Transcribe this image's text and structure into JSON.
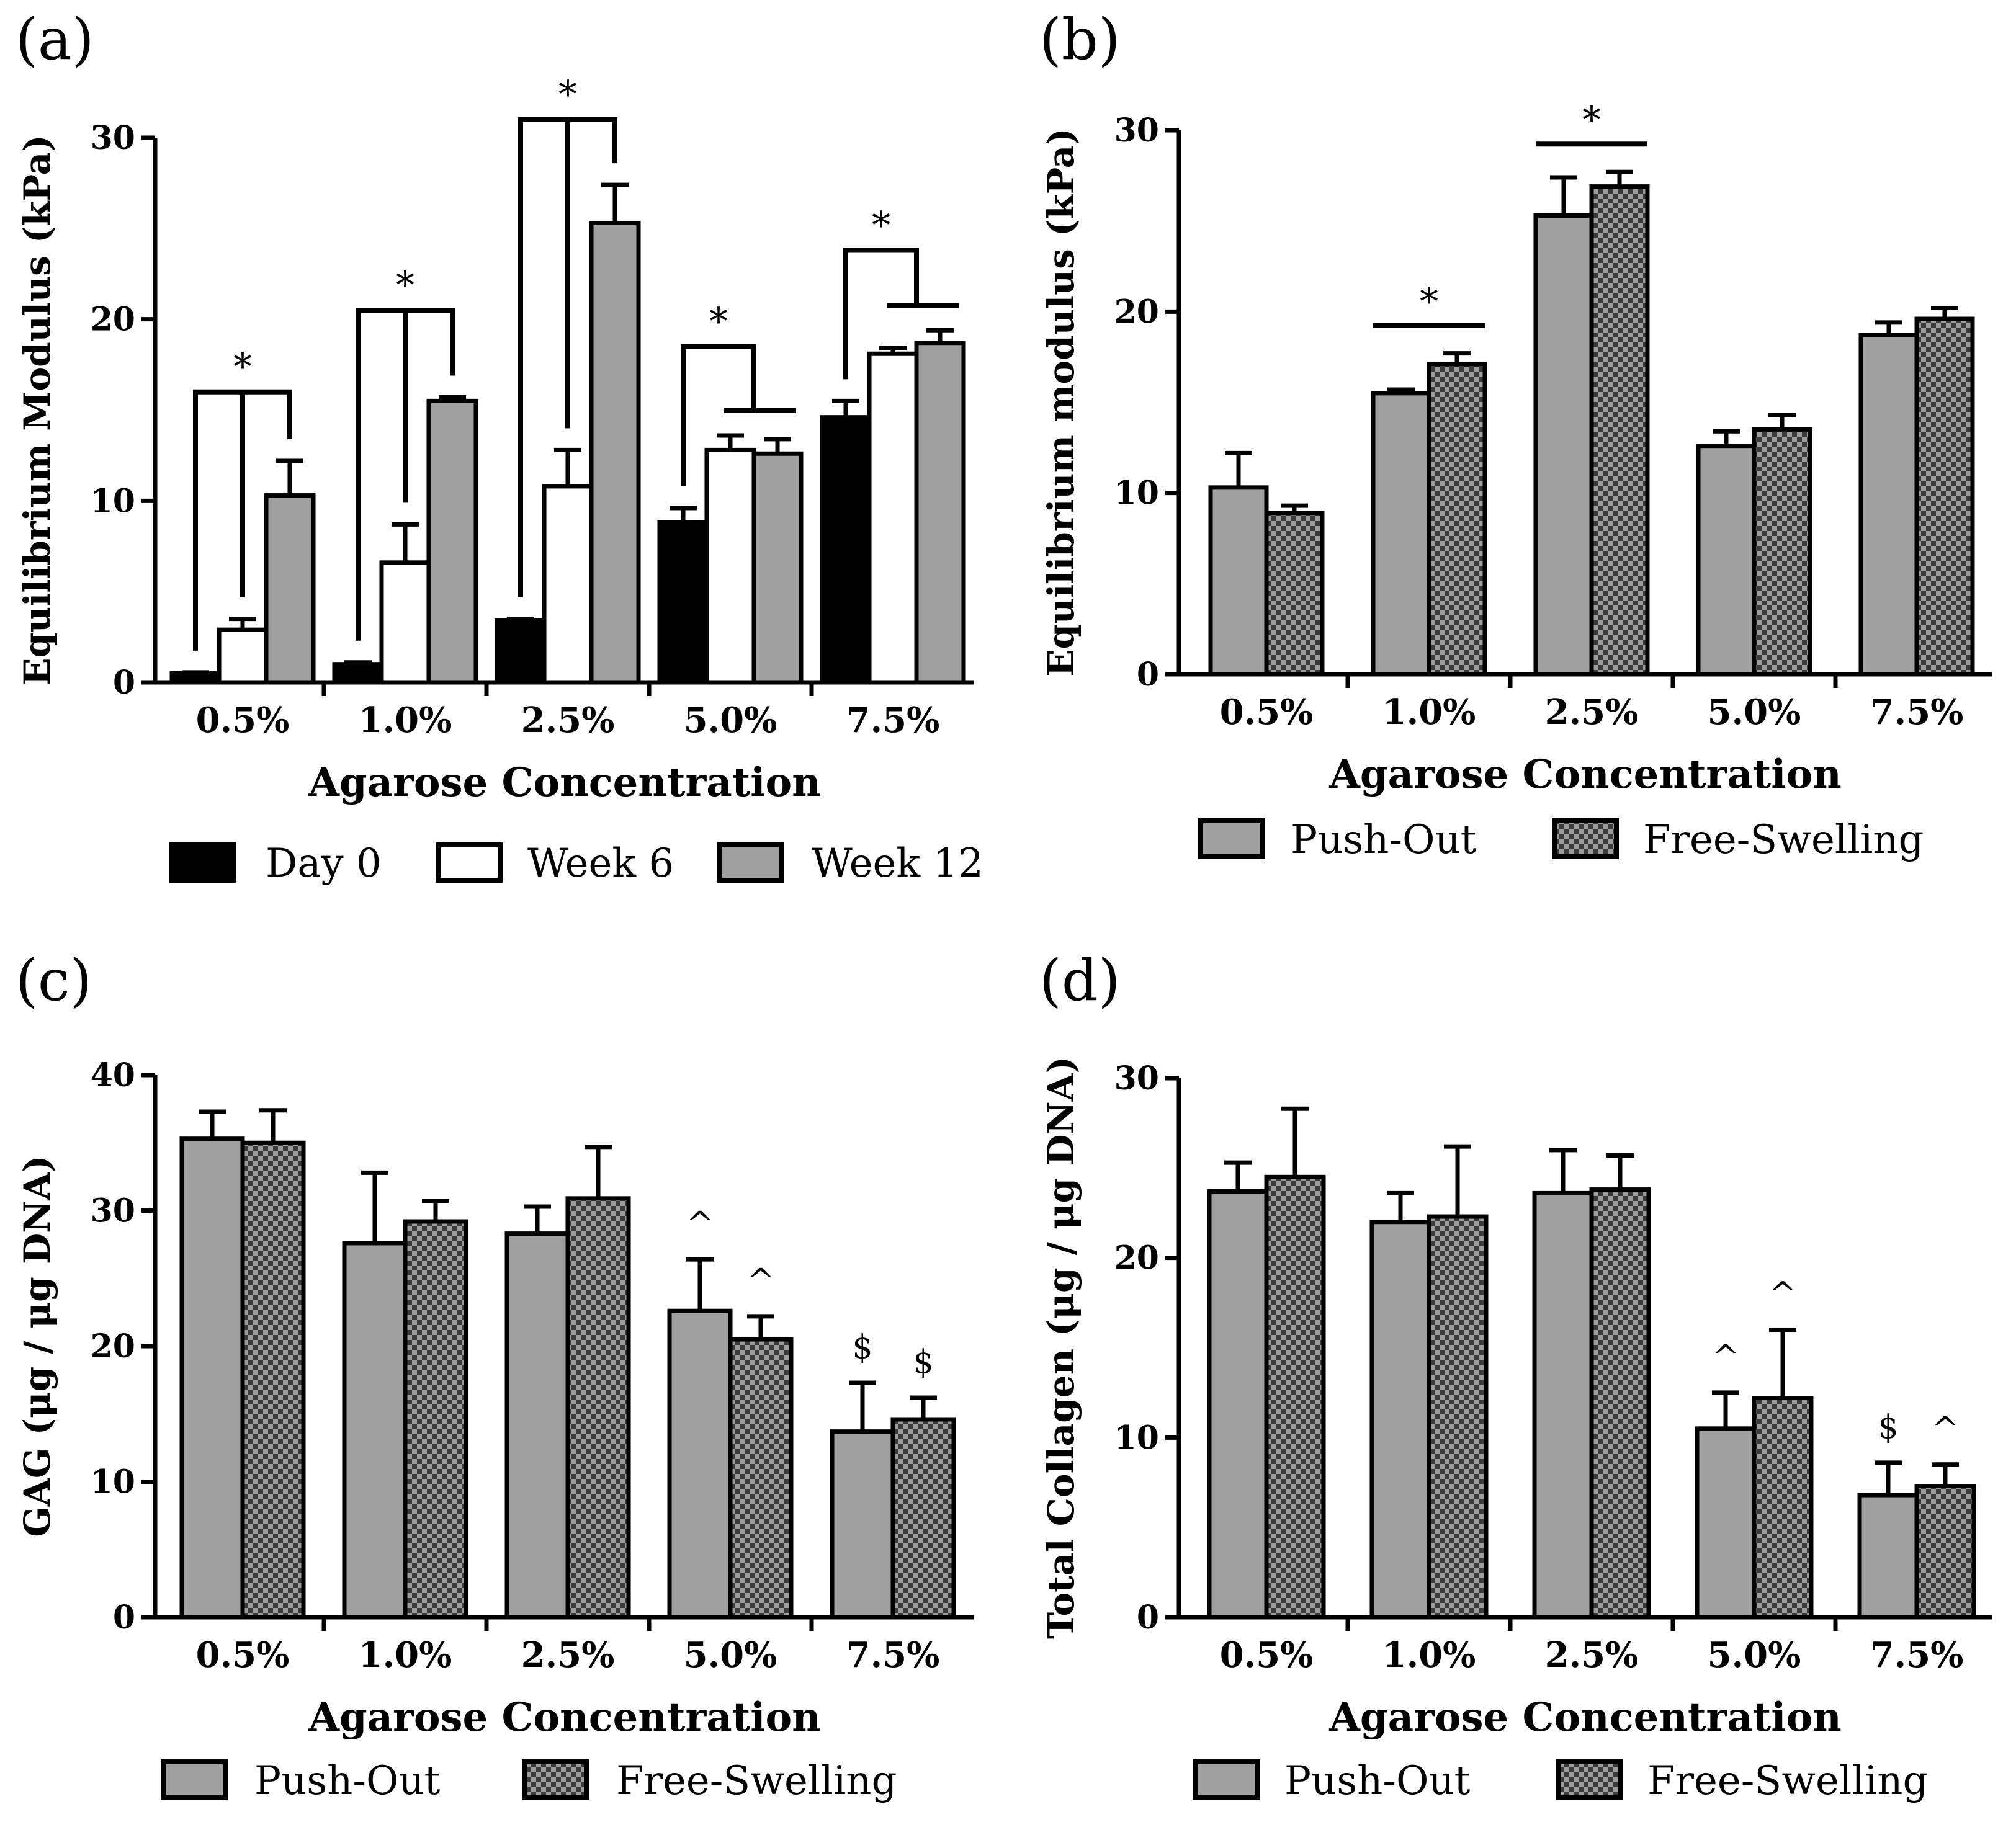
{
  "chart_data": [
    {
      "type": "bar",
      "panel": "(a)",
      "xlabel": "Agarose Concentration",
      "ylabel": "Equilibrium  Modulus (kPa)",
      "ylim": [
        0,
        30
      ],
      "yticks": [
        "0",
        "10",
        "20",
        "30"
      ],
      "categories": [
        "0.5%",
        "1.0%",
        "2.5%",
        "5.0%",
        "7.5%"
      ],
      "legend_position": "bottom",
      "series": [
        {
          "name": "Day 0",
          "style": "black",
          "values": [
            0.5,
            1.0,
            3.4,
            8.8,
            14.6
          ],
          "errors": [
            0.05,
            0.1,
            0.1,
            0.8,
            0.9
          ]
        },
        {
          "name": "Week 6",
          "style": "white",
          "values": [
            2.9,
            6.6,
            10.8,
            12.8,
            18.1
          ],
          "errors": [
            0.6,
            2.1,
            2.0,
            0.8,
            0.3
          ]
        },
        {
          "name": "Week 12",
          "style": "gray",
          "values": [
            10.3,
            15.5,
            25.3,
            12.6,
            18.7
          ],
          "errors": [
            1.9,
            0.2,
            2.1,
            0.8,
            0.7
          ]
        }
      ],
      "annotations": [
        {
          "text": "*",
          "category": "0.5%"
        },
        {
          "text": "*",
          "category": "1.0%"
        },
        {
          "text": "*",
          "category": "2.5%"
        },
        {
          "text": "*",
          "category": "5.0%"
        },
        {
          "text": "*",
          "category": "7.5%"
        }
      ]
    },
    {
      "type": "bar",
      "panel": "(b)",
      "xlabel": "Agarose Concentration",
      "ylabel": "Equilibrium modulus (kPa)",
      "ylim": [
        0,
        30
      ],
      "yticks": [
        "0",
        "10",
        "20",
        "30"
      ],
      "categories": [
        "0.5%",
        "1.0%",
        "2.5%",
        "5.0%",
        "7.5%"
      ],
      "legend_position": "bottom",
      "series": [
        {
          "name": "Push-Out",
          "style": "gray",
          "values": [
            10.3,
            15.5,
            25.3,
            12.6,
            18.7
          ],
          "errors": [
            1.9,
            0.2,
            2.1,
            0.8,
            0.7
          ]
        },
        {
          "name": "Free-Swelling",
          "style": "checker",
          "values": [
            8.9,
            17.1,
            26.9,
            13.5,
            19.6
          ],
          "errors": [
            0.4,
            0.6,
            0.8,
            0.8,
            0.6
          ]
        }
      ],
      "annotations": [
        {
          "text": "*",
          "category": "1.0%"
        },
        {
          "text": "*",
          "category": "2.5%"
        }
      ]
    },
    {
      "type": "bar",
      "panel": "(c)",
      "xlabel": "Agarose Concentration",
      "ylabel": "GAG (μg / μg DNA)",
      "ylim": [
        0,
        40
      ],
      "yticks": [
        "0",
        "10",
        "20",
        "30",
        "40"
      ],
      "categories": [
        "0.5%",
        "1.0%",
        "2.5%",
        "5.0%",
        "7.5%"
      ],
      "legend_position": "bottom",
      "series": [
        {
          "name": "Push-Out",
          "style": "gray",
          "values": [
            35.3,
            27.6,
            28.3,
            22.6,
            13.7
          ],
          "errors": [
            2.0,
            5.2,
            2.0,
            3.8,
            3.6
          ]
        },
        {
          "name": "Free-Swelling",
          "style": "checker",
          "values": [
            35.0,
            29.2,
            30.9,
            20.5,
            14.6
          ],
          "errors": [
            2.4,
            1.5,
            3.8,
            1.7,
            1.6
          ]
        }
      ],
      "annotations": [
        {
          "text": "^",
          "category": "5.0%",
          "series": "Push-Out"
        },
        {
          "text": "^",
          "category": "5.0%",
          "series": "Free-Swelling"
        },
        {
          "text": "$",
          "category": "7.5%",
          "series": "Push-Out"
        },
        {
          "text": "$",
          "category": "7.5%",
          "series": "Free-Swelling"
        }
      ]
    },
    {
      "type": "bar",
      "panel": "(d)",
      "xlabel": "Agarose Concentration",
      "ylabel": "Total Collagen (μg / μg DNA)",
      "ylim": [
        0,
        30
      ],
      "yticks": [
        "0",
        "10",
        "20",
        "30"
      ],
      "categories": [
        "0.5%",
        "1.0%",
        "2.5%",
        "5.0%",
        "7.5%"
      ],
      "legend_position": "bottom",
      "series": [
        {
          "name": "Push-Out",
          "style": "gray",
          "values": [
            23.7,
            22.0,
            23.6,
            10.5,
            6.8
          ],
          "errors": [
            1.6,
            1.6,
            2.4,
            2.0,
            1.8
          ]
        },
        {
          "name": "Free-Swelling",
          "style": "checker",
          "values": [
            24.5,
            22.3,
            23.8,
            12.2,
            7.3
          ],
          "errors": [
            3.8,
            3.9,
            1.9,
            3.8,
            1.2
          ]
        }
      ],
      "annotations": [
        {
          "text": "^",
          "category": "5.0%",
          "series": "Push-Out"
        },
        {
          "text": "^",
          "category": "5.0%",
          "series": "Free-Swelling"
        },
        {
          "text": "$",
          "category": "7.5%",
          "series": "Push-Out"
        },
        {
          "text": "^",
          "category": "7.5%",
          "series": "Free-Swelling"
        }
      ]
    }
  ]
}
